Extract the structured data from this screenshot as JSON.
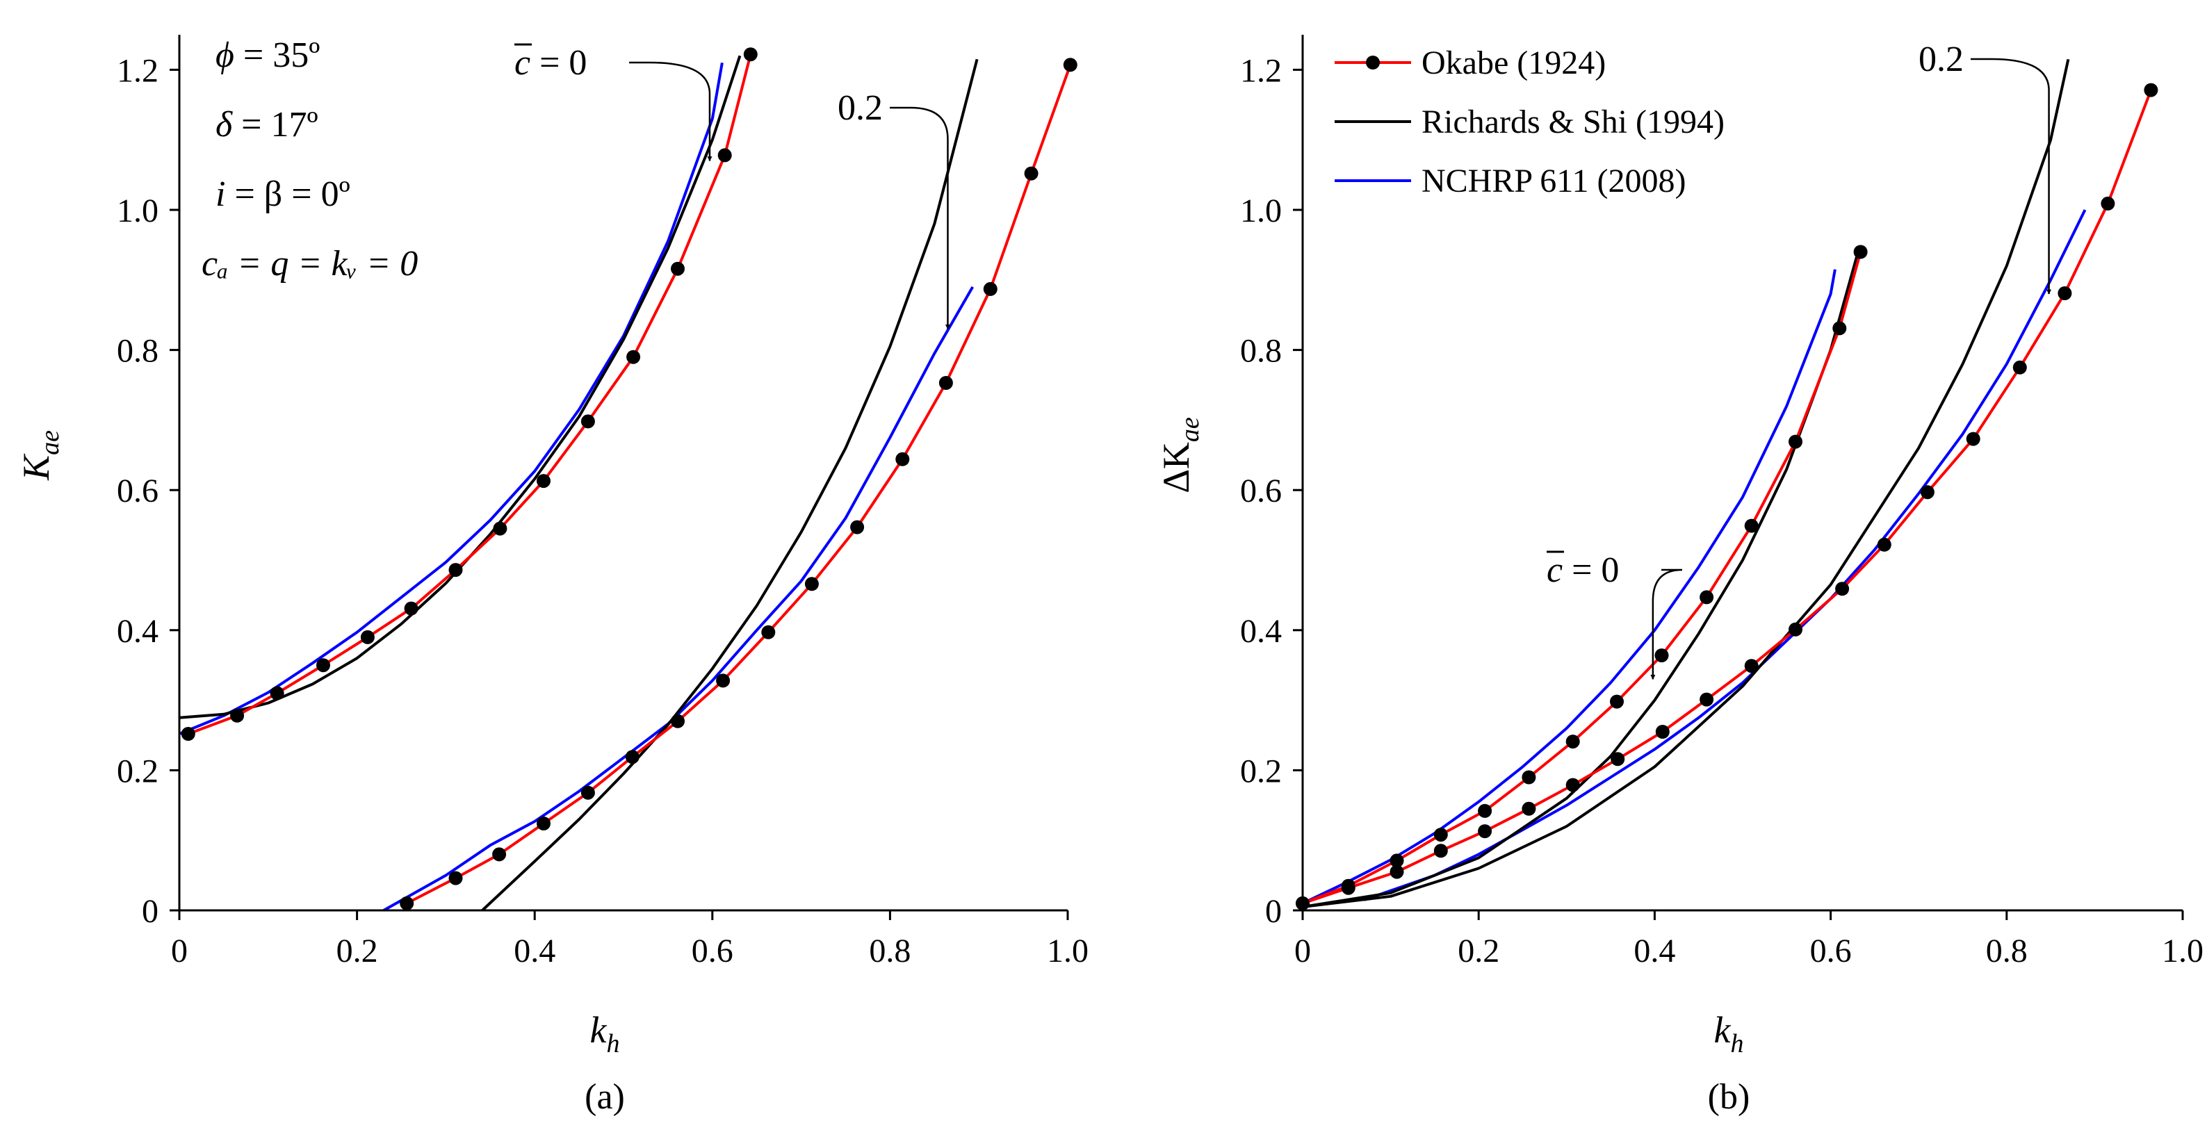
{
  "chart_data": [
    {
      "type": "line",
      "panel": "(a)",
      "xlabel_base": "k",
      "xlabel_sub": "h",
      "ylabel_base": "K",
      "ylabel_sub": "ae",
      "xlim": [
        0,
        1.0
      ],
      "ylim": [
        0,
        1.25
      ],
      "xticks": [
        0,
        0.2,
        0.4,
        0.6,
        0.8,
        1.0
      ],
      "xtick_labels": [
        "0",
        "0.2",
        "0.4",
        "0.6",
        "0.8",
        "1.0"
      ],
      "yticks": [
        0,
        0.2,
        0.4,
        0.6,
        0.8,
        1.0,
        1.2
      ],
      "ytick_labels": [
        "0",
        "0.2",
        "0.4",
        "0.6",
        "0.8",
        "1.0",
        "1.2"
      ],
      "params": [
        {
          "sym": "ϕ",
          "rest": " = 35º"
        },
        {
          "sym": "δ",
          "rest": " = 17º"
        },
        {
          "sym": "i",
          "rest": " = β = 0º"
        },
        {
          "sym": "cₐ = q = kᵥ = 0",
          "rest": ""
        }
      ],
      "annotations": [
        {
          "sym": "c",
          "overline": true,
          "text": " = 0",
          "target": [
            0.597,
            1.07
          ]
        },
        {
          "sym": "",
          "overline": false,
          "text": "0.2",
          "target": [
            0.865,
            0.83
          ]
        }
      ],
      "series": [
        {
          "name": "Okabe (1924)",
          "group": "c0",
          "color": "#ff0000",
          "markers": true,
          "x": [
            0.01,
            0.065,
            0.11,
            0.162,
            0.212,
            0.261,
            0.311,
            0.361,
            0.41,
            0.46,
            0.511,
            0.561,
            0.614,
            0.643
          ],
          "y": [
            0.252,
            0.278,
            0.31,
            0.35,
            0.39,
            0.431,
            0.486,
            0.545,
            0.613,
            0.698,
            0.79,
            0.916,
            1.078,
            1.222
          ]
        },
        {
          "name": "Richards & Shi (1994)",
          "group": "c0",
          "color": "#000000",
          "markers": false,
          "x": [
            0.0,
            0.05,
            0.1,
            0.15,
            0.2,
            0.25,
            0.3,
            0.35,
            0.4,
            0.45,
            0.5,
            0.55,
            0.6,
            0.631
          ],
          "y": [
            0.275,
            0.28,
            0.296,
            0.323,
            0.36,
            0.409,
            0.467,
            0.537,
            0.616,
            0.705,
            0.815,
            0.945,
            1.1,
            1.22
          ]
        },
        {
          "name": "NCHRP 611 (2008)",
          "group": "c0",
          "color": "#0000ff",
          "markers": false,
          "x": [
            0.0,
            0.05,
            0.1,
            0.15,
            0.2,
            0.25,
            0.3,
            0.35,
            0.4,
            0.45,
            0.5,
            0.55,
            0.6,
            0.611
          ],
          "y": [
            0.252,
            0.278,
            0.311,
            0.353,
            0.397,
            0.447,
            0.497,
            0.557,
            0.627,
            0.715,
            0.82,
            0.955,
            1.13,
            1.21
          ]
        },
        {
          "name": "Okabe (1924)",
          "group": "c0.2",
          "color": "#ff0000",
          "markers": true,
          "x": [
            0.256,
            0.311,
            0.36,
            0.41,
            0.46,
            0.51,
            0.561,
            0.612,
            0.663,
            0.712,
            0.763,
            0.814,
            0.863,
            0.913,
            0.959,
            1.003
          ],
          "y": [
            0.01,
            0.046,
            0.08,
            0.124,
            0.168,
            0.219,
            0.27,
            0.328,
            0.397,
            0.466,
            0.547,
            0.644,
            0.753,
            0.887,
            1.052,
            1.207
          ]
        },
        {
          "name": "Richards & Shi (1994)",
          "group": "c0.2",
          "color": "#000000",
          "markers": false,
          "x": [
            0.341,
            0.4,
            0.45,
            0.5,
            0.55,
            0.6,
            0.65,
            0.7,
            0.75,
            0.8,
            0.85,
            0.898
          ],
          "y": [
            0.0,
            0.07,
            0.13,
            0.195,
            0.265,
            0.345,
            0.435,
            0.54,
            0.66,
            0.805,
            0.98,
            1.215
          ]
        },
        {
          "name": "NCHRP 611 (2008)",
          "group": "c0.2",
          "color": "#0000ff",
          "markers": false,
          "x": [
            0.23,
            0.3,
            0.35,
            0.4,
            0.45,
            0.5,
            0.55,
            0.6,
            0.65,
            0.7,
            0.75,
            0.8,
            0.85,
            0.893
          ],
          "y": [
            0.0,
            0.05,
            0.093,
            0.127,
            0.17,
            0.218,
            0.266,
            0.328,
            0.4,
            0.47,
            0.56,
            0.675,
            0.795,
            0.89
          ]
        }
      ]
    },
    {
      "type": "line",
      "panel": "(b)",
      "xlabel_base": "k",
      "xlabel_sub": "h",
      "ylabel_base": "ΔK",
      "ylabel_sub": "ae",
      "xlim": [
        0,
        1.0
      ],
      "ylim": [
        0,
        1.25
      ],
      "xticks": [
        0,
        0.2,
        0.4,
        0.6,
        0.8,
        1.0
      ],
      "xtick_labels": [
        "0",
        "0.2",
        "0.4",
        "0.6",
        "0.8",
        "1.0"
      ],
      "yticks": [
        0,
        0.2,
        0.4,
        0.6,
        0.8,
        1.0,
        1.2
      ],
      "ytick_labels": [
        "0",
        "0.2",
        "0.4",
        "0.6",
        "0.8",
        "1.0",
        "1.2"
      ],
      "legend": {
        "position": "top-left",
        "entries": [
          "Okabe (1924)",
          "Richards & Shi (1994)",
          "NCHRP 611 (2008)"
        ]
      },
      "annotations": [
        {
          "sym": "c",
          "overline": true,
          "text": " = 0",
          "target": [
            0.398,
            0.33
          ]
        },
        {
          "sym": "",
          "overline": false,
          "text": "0.2",
          "target": [
            0.848,
            0.88
          ]
        }
      ],
      "series": [
        {
          "name": "Okabe (1924)",
          "group": "c0",
          "color": "#ff0000",
          "markers": true,
          "x": [
            0.0,
            0.052,
            0.107,
            0.157,
            0.207,
            0.257,
            0.307,
            0.357,
            0.408,
            0.459,
            0.51,
            0.56,
            0.61,
            0.634
          ],
          "y": [
            0.01,
            0.035,
            0.071,
            0.108,
            0.142,
            0.19,
            0.241,
            0.298,
            0.364,
            0.447,
            0.549,
            0.669,
            0.831,
            0.94
          ]
        },
        {
          "name": "Richards & Shi (1994)",
          "group": "c0",
          "color": "#000000",
          "markers": false,
          "x": [
            0.0,
            0.1,
            0.2,
            0.3,
            0.35,
            0.4,
            0.45,
            0.5,
            0.55,
            0.6,
            0.63
          ],
          "y": [
            0.005,
            0.025,
            0.075,
            0.16,
            0.22,
            0.3,
            0.395,
            0.5,
            0.63,
            0.8,
            0.935
          ]
        },
        {
          "name": "NCHRP 611 (2008)",
          "group": "c0",
          "color": "#0000ff",
          "markers": false,
          "x": [
            0.0,
            0.05,
            0.1,
            0.15,
            0.2,
            0.25,
            0.3,
            0.35,
            0.4,
            0.45,
            0.5,
            0.55,
            0.6,
            0.605
          ],
          "y": [
            0.01,
            0.04,
            0.072,
            0.11,
            0.155,
            0.205,
            0.26,
            0.325,
            0.4,
            0.49,
            0.59,
            0.72,
            0.88,
            0.915
          ]
        },
        {
          "name": "Okabe (1924)",
          "group": "c0.2",
          "color": "#ff0000",
          "markers": true,
          "x": [
            0.0,
            0.052,
            0.107,
            0.157,
            0.207,
            0.257,
            0.307,
            0.358,
            0.409,
            0.459,
            0.51,
            0.56,
            0.613,
            0.661,
            0.71,
            0.762,
            0.815,
            0.866,
            0.915,
            0.964
          ],
          "y": [
            0.01,
            0.032,
            0.055,
            0.085,
            0.113,
            0.145,
            0.179,
            0.216,
            0.255,
            0.301,
            0.349,
            0.401,
            0.459,
            0.522,
            0.597,
            0.673,
            0.775,
            0.881,
            1.009,
            1.171
          ]
        },
        {
          "name": "Richards & Shi (1994)",
          "group": "c0.2",
          "color": "#000000",
          "markers": false,
          "x": [
            0.0,
            0.1,
            0.2,
            0.3,
            0.4,
            0.5,
            0.6,
            0.7,
            0.75,
            0.8,
            0.85,
            0.87
          ],
          "y": [
            0.005,
            0.02,
            0.06,
            0.12,
            0.205,
            0.32,
            0.465,
            0.66,
            0.78,
            0.92,
            1.1,
            1.215
          ]
        },
        {
          "name": "NCHRP 611 (2008)",
          "group": "c0.2",
          "color": "#0000ff",
          "markers": false,
          "x": [
            0.07,
            0.15,
            0.2,
            0.25,
            0.3,
            0.35,
            0.4,
            0.45,
            0.5,
            0.55,
            0.6,
            0.65,
            0.7,
            0.75,
            0.8,
            0.85,
            0.889
          ],
          "y": [
            0.015,
            0.05,
            0.08,
            0.115,
            0.15,
            0.19,
            0.23,
            0.275,
            0.325,
            0.385,
            0.445,
            0.515,
            0.595,
            0.68,
            0.78,
            0.9,
            1.0
          ]
        }
      ]
    }
  ]
}
